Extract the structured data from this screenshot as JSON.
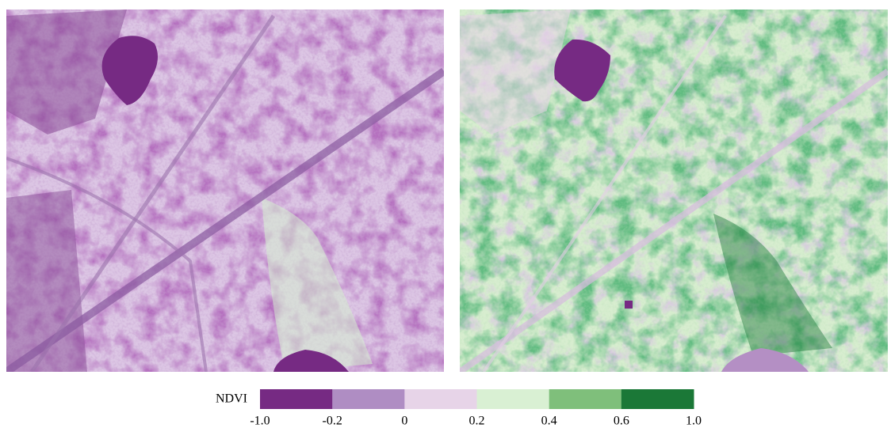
{
  "colorbar": {
    "title": "NDVI",
    "ticks": [
      {
        "value": -1,
        "label": "-1.0"
      },
      -0.2,
      0,
      0.2,
      0.4,
      0.6,
      {
        "value": 1,
        "label": "1.0"
      }
    ],
    "colors": [
      "#762a83",
      "#af8dc3",
      "#e7d4e8",
      "#d9f0d3",
      "#7fbf7b",
      "#1b7837"
    ]
  }
}
